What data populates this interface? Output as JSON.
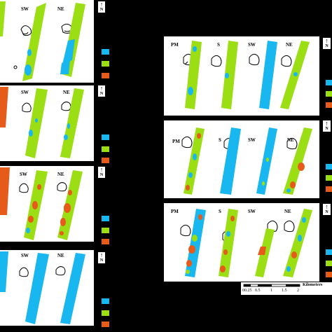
{
  "colors": {
    "blue": "#19b7f0",
    "green": "#9bde14",
    "orange": "#e65a1a",
    "background": "#000000"
  },
  "icons": [
    "north-arrow-icon",
    "lake-outline-icon",
    "scale-bar-icon"
  ],
  "north_label": "N",
  "labels": {
    "pm": "PM",
    "s": "S",
    "sw": "SW",
    "ne": "NE"
  },
  "scale": {
    "kilometers": "Kilometers",
    "ticks": [
      "00.25",
      "0.5",
      "1",
      "1.5",
      "2"
    ]
  }
}
